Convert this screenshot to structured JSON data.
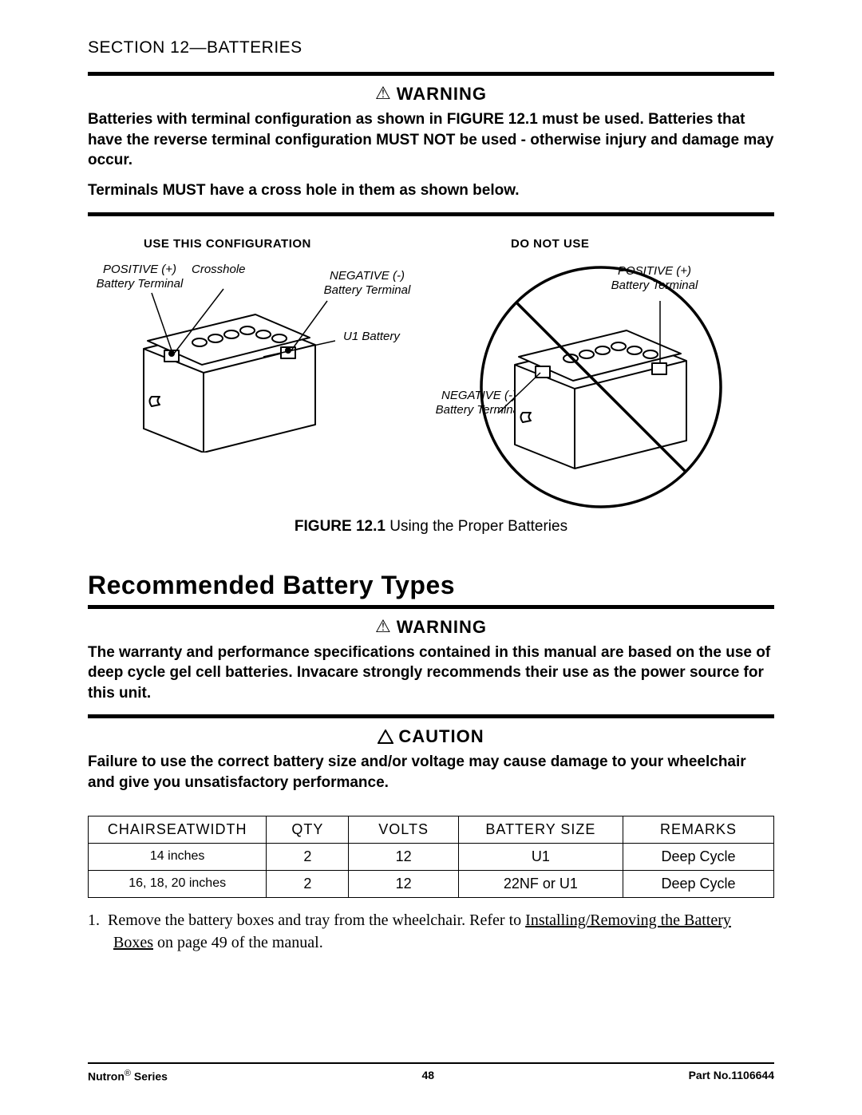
{
  "header": {
    "section": "SECTION 12—BATTERIES"
  },
  "warning1": {
    "label": "WARNING",
    "glyph": "⚠",
    "para1": "Batteries with terminal configuration as shown in FIGURE 12.1 must be used. Batteries that have the reverse terminal configuration MUST NOT be used - otherwise injury and damage may occur.",
    "para2": "Terminals MUST have a cross hole in them as shown below."
  },
  "figure": {
    "use_label": "USE THIS CONFIGURATION",
    "donot_label": "DO NOT USE",
    "labels": {
      "pos_term_left": "POSITIVE (+)\nBattery Terminal",
      "crosshole": "Crosshole",
      "neg_term_left": "NEGATIVE (-)\nBattery Terminal",
      "u1_battery": "U1 Battery",
      "neg_term_right": "NEGATIVE (-)\nBattery Terminal",
      "pos_term_right": "POSITIVE (+)\nBattery Terminal"
    },
    "caption_no": "FIGURE 12.1",
    "caption_text": "Using the Proper Batteries"
  },
  "h2": "Recommended Battery Types",
  "warning2": {
    "label": "WARNING",
    "glyph": "⚠",
    "text": "The warranty and performance specifications contained in this manual are based on the use of deep cycle gel cell batteries. Invacare strongly recommends their use as the power source for this unit."
  },
  "caution": {
    "label": "CAUTION",
    "text": "Failure to use the correct battery size and/or voltage may cause damage to your wheelchair and give you unsatisfactory performance."
  },
  "table": {
    "columns": [
      "CHAIRSEATWIDTH",
      "QTY",
      "VOLTS",
      "BATTERY SIZE",
      "REMARKS"
    ],
    "col_widths": [
      "26%",
      "12%",
      "16%",
      "24%",
      "22%"
    ],
    "rows": [
      [
        "14 inches",
        "2",
        "12",
        "U1",
        "Deep Cycle"
      ],
      [
        "16, 18, 20 inches",
        "2",
        "12",
        "22NF or U1",
        "Deep Cycle"
      ]
    ]
  },
  "step": {
    "num": "1.",
    "pre": "Remove the battery boxes and tray from the wheelchair. Refer to ",
    "link": "Installing/Removing the Battery Boxes",
    "post": " on page 49 of the manual."
  },
  "footer": {
    "series_pre": "Nutron",
    "series_sup": "®",
    "series_post": " Series",
    "page": "48",
    "part": "Part No.1106644"
  },
  "style": {
    "page_bg": "#ffffff",
    "text_color": "#000000",
    "rule_thick": 5,
    "rule_thin": 2,
    "body_fontsize": 19,
    "h2_fontsize": 32,
    "caption_fontsize": 19,
    "table_fontsize": 18,
    "footer_fontsize": 14,
    "diagram_stroke": "#000000",
    "diagram_fill": "#ffffff"
  }
}
